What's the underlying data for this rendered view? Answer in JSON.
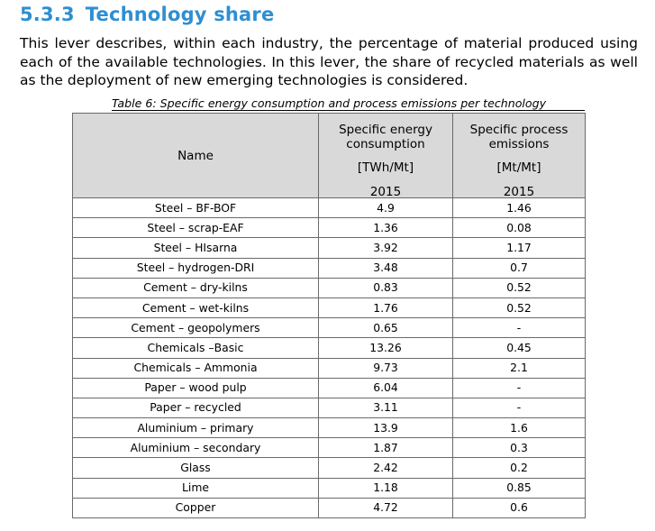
{
  "section": {
    "number": "5.3.3",
    "title": "Technology share",
    "paragraph": "This lever describes, within each industry, the percentage of material produced using each of the available technologies. In this lever, the share of recycled materials as well as the deployment of new emerging technologies is considered."
  },
  "table": {
    "caption": "Table 6: Specific energy consumption and process emissions per technology",
    "header": {
      "name": "Name",
      "energy_title": "Specific energy consumption",
      "energy_unit": "[TWh/Mt]",
      "energy_year": "2015",
      "emissions_title": "Specific process emissions",
      "emissions_unit": "[Mt/Mt]",
      "emissions_year": "2015"
    },
    "rows": [
      {
        "name": "Steel – BF-BOF",
        "energy": "4.9",
        "emissions": "1.46"
      },
      {
        "name": "Steel – scrap-EAF",
        "energy": "1.36",
        "emissions": "0.08"
      },
      {
        "name": "Steel – HIsarna",
        "energy": "3.92",
        "emissions": "1.17"
      },
      {
        "name": "Steel – hydrogen-DRI",
        "energy": "3.48",
        "emissions": "0.7"
      },
      {
        "name": "Cement – dry-kilns",
        "energy": "0.83",
        "emissions": "0.52"
      },
      {
        "name": "Cement – wet-kilns",
        "energy": "1.76",
        "emissions": "0.52"
      },
      {
        "name": "Cement – geopolymers",
        "energy": "0.65",
        "emissions": "-"
      },
      {
        "name": "Chemicals –Basic",
        "energy": "13.26",
        "emissions": "0.45"
      },
      {
        "name": "Chemicals – Ammonia",
        "energy": "9.73",
        "emissions": "2.1"
      },
      {
        "name": "Paper – wood pulp",
        "energy": "6.04",
        "emissions": "-"
      },
      {
        "name": "Paper – recycled",
        "energy": "3.11",
        "emissions": "-"
      },
      {
        "name": "Aluminium – primary",
        "energy": "13.9",
        "emissions": "1.6"
      },
      {
        "name": "Aluminium – secondary",
        "energy": "1.87",
        "emissions": "0.3"
      },
      {
        "name": "Glass",
        "energy": "2.42",
        "emissions": "0.2"
      },
      {
        "name": "Lime",
        "energy": "1.18",
        "emissions": "0.85"
      },
      {
        "name": "Copper",
        "energy": "4.72",
        "emissions": "0.6"
      }
    ]
  }
}
